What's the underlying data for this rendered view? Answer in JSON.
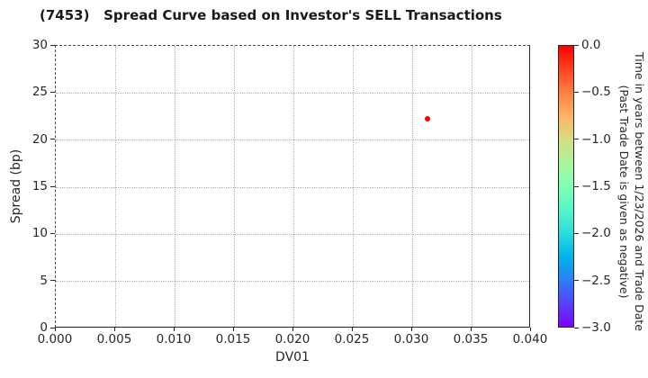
{
  "figure": {
    "title": "(7453)   Spread Curve based on Investor's SELL Transactions",
    "background": "#ffffff"
  },
  "style": {
    "text_color": "#262626",
    "grid_color": "#b0b0b0",
    "spine_color": "#262626",
    "point_color": "#ff0000"
  },
  "chart_data": {
    "type": "scatter",
    "title": "(7453)   Spread Curve based on Investor's SELL Transactions",
    "xlabel": "DV01",
    "ylabel": "Spread (bp)",
    "xlim": [
      0.0,
      0.04
    ],
    "ylim": [
      0,
      30
    ],
    "grid": true,
    "x_tick_values": [
      0.0,
      0.005,
      0.01,
      0.015,
      0.02,
      0.025,
      0.03,
      0.035,
      0.04
    ],
    "x_tick_labels": [
      "0.000",
      "0.005",
      "0.010",
      "0.015",
      "0.020",
      "0.025",
      "0.030",
      "0.035",
      "0.040"
    ],
    "y_tick_values": [
      0,
      5,
      10,
      15,
      20,
      25,
      30
    ],
    "y_tick_labels": [
      "0",
      "5",
      "10",
      "15",
      "20",
      "25",
      "30"
    ],
    "points": [
      {
        "x": 0.0313,
        "y": 22.3,
        "color": "#ff0000",
        "time_years": 0.0
      }
    ],
    "colorbar": {
      "colormap": "rainbow",
      "range_top_to_bottom": [
        0.0,
        -3.0
      ],
      "tick_values": [
        0.0,
        -0.5,
        -1.0,
        -1.5,
        -2.0,
        -2.5,
        -3.0
      ],
      "tick_labels": [
        "0.0",
        "−0.5",
        "−1.0",
        "−1.5",
        "−2.0",
        "−2.5",
        "−3.0"
      ],
      "label_line1": "Time in years between 1/23/2026 and Trade Date",
      "label_line2": "(Past Trade Date is given as negative)",
      "gradient_top_to_bottom": [
        "#ff0000",
        "#ff4221",
        "#ff8042",
        "#ffb462",
        "#d5dd80",
        "#aaf69b",
        "#80ffb4",
        "#55f6ca",
        "#2bdddd",
        "#00b4ec",
        "#2b80f6",
        "#5542fd",
        "#8000ff"
      ]
    }
  }
}
